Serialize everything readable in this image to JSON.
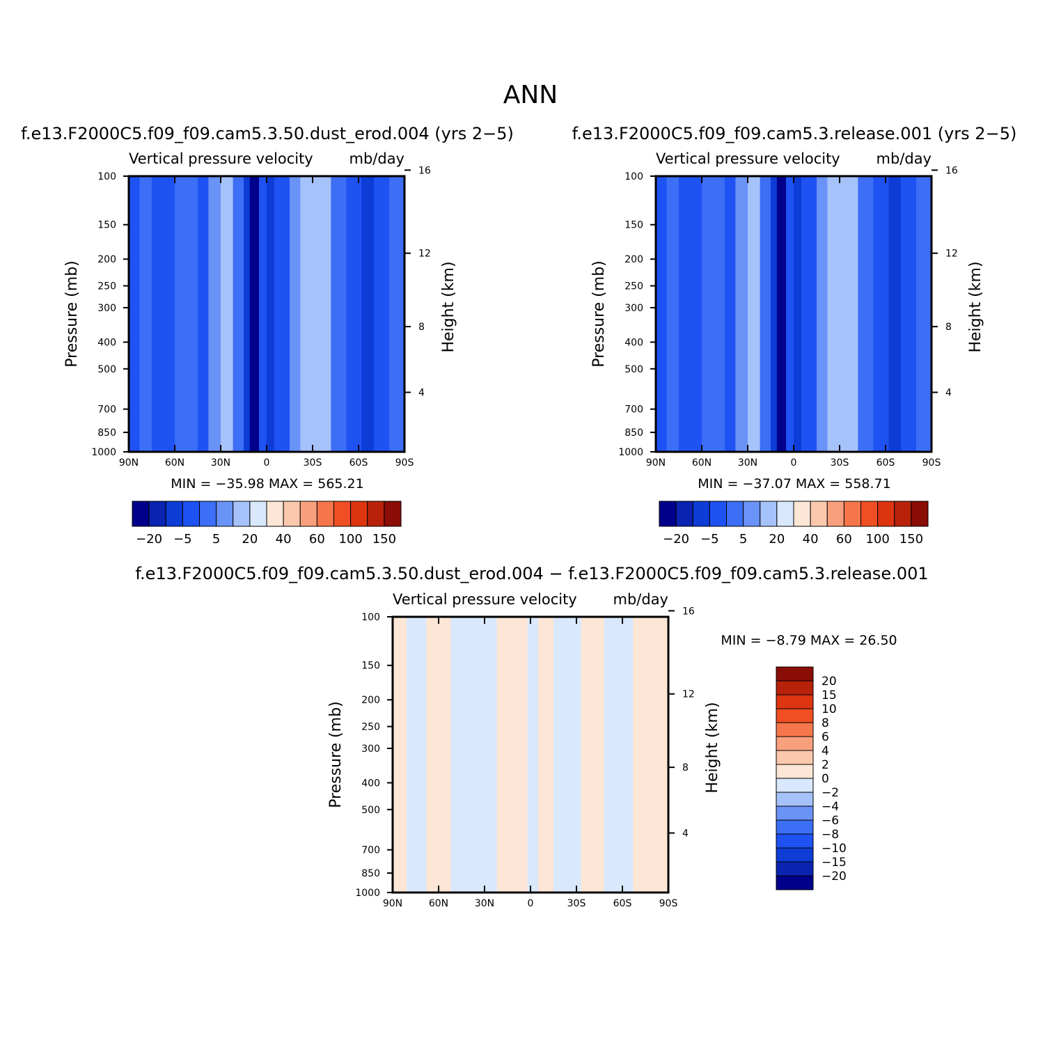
{
  "figure": {
    "title": "ANN"
  },
  "palettes": {
    "main_colors": [
      "#00008b",
      "#0a23b0",
      "#0d3cd6",
      "#1e52f2",
      "#3c6ef6",
      "#6a93f8",
      "#a6c2fb",
      "#d9e8fc",
      "#fde6d6",
      "#fcc8ad",
      "#f8a07d",
      "#f6764b",
      "#ef4f22",
      "#dc3510",
      "#b9220a",
      "#8a0d06"
    ],
    "diff_colors": [
      "#00008b",
      "#0a23b0",
      "#0d3cd6",
      "#1e52f2",
      "#3c6ef6",
      "#6a93f8",
      "#a6c2fb",
      "#d9e8fc",
      "#fde6d6",
      "#fcc8ad",
      "#f8a07d",
      "#f6764b",
      "#ef4f22",
      "#dc3510",
      "#b9220a",
      "#8a0d06"
    ]
  },
  "chart_data": [
    {
      "id": "panel-top-left",
      "type": "heatmap",
      "case_title": "f.e13.F2000C5.f09_f09.cam5.3.50.dust_erod.004 (yrs 2−5)",
      "variable": "Vertical pressure velocity",
      "units": "mb/day",
      "ylabel": "Pressure (mb)",
      "y2label": "Height (km)",
      "x_ticks": [
        "90N",
        "60N",
        "30N",
        "0",
        "30S",
        "60S",
        "90S"
      ],
      "y_ticks": [
        "100",
        "150",
        "200",
        "250",
        "300",
        "400",
        "500",
        "700",
        "850",
        "1000"
      ],
      "y_tick_values": [
        100,
        150,
        200,
        250,
        300,
        400,
        500,
        700,
        850,
        1000
      ],
      "y2_ticks": [
        "4",
        "8",
        "12",
        "16"
      ],
      "y2_tick_values": [
        4,
        8,
        12,
        16
      ],
      "xlim": [
        90,
        -90
      ],
      "ylim": [
        100,
        1000
      ],
      "y_scale": "log",
      "stats_text": "MIN =  −35.98    MAX =  565.21",
      "min": -35.98,
      "max": 565.21,
      "colorbar": {
        "orientation": "horizontal",
        "labels": [
          "−20",
          "−5",
          "5",
          "20",
          "40",
          "60",
          "100",
          "150"
        ]
      },
      "bands": [
        {
          "lat": [
            90,
            83
          ],
          "level": 3
        },
        {
          "lat": [
            83,
            75
          ],
          "level": 4
        },
        {
          "lat": [
            75,
            60
          ],
          "level": 3
        },
        {
          "lat": [
            60,
            45
          ],
          "level": 4
        },
        {
          "lat": [
            45,
            38
          ],
          "level": 3
        },
        {
          "lat": [
            38,
            30
          ],
          "level": 5
        },
        {
          "lat": [
            30,
            22
          ],
          "level": 6
        },
        {
          "lat": [
            22,
            15
          ],
          "level": 4
        },
        {
          "lat": [
            15,
            11
          ],
          "level": 2
        },
        {
          "lat": [
            11,
            5
          ],
          "level": 0
        },
        {
          "lat": [
            5,
            0
          ],
          "level": 3
        },
        {
          "lat": [
            0,
            -5
          ],
          "level": 2
        },
        {
          "lat": [
            -5,
            -15
          ],
          "level": 3
        },
        {
          "lat": [
            -15,
            -22
          ],
          "level": 5
        },
        {
          "lat": [
            -22,
            -42
          ],
          "level": 6
        },
        {
          "lat": [
            -42,
            -52
          ],
          "level": 4
        },
        {
          "lat": [
            -52,
            -62
          ],
          "level": 3
        },
        {
          "lat": [
            -62,
            -70
          ],
          "level": 2
        },
        {
          "lat": [
            -70,
            -80
          ],
          "level": 3
        },
        {
          "lat": [
            -80,
            -90
          ],
          "level": 4
        }
      ]
    },
    {
      "id": "panel-top-right",
      "type": "heatmap",
      "case_title": "f.e13.F2000C5.f09_f09.cam5.3.release.001 (yrs 2−5)",
      "variable": "Vertical pressure velocity",
      "units": "mb/day",
      "ylabel": "Pressure (mb)",
      "y2label": "Height (km)",
      "x_ticks": [
        "90N",
        "60N",
        "30N",
        "0",
        "30S",
        "60S",
        "90S"
      ],
      "y_ticks": [
        "100",
        "150",
        "200",
        "250",
        "300",
        "400",
        "500",
        "700",
        "850",
        "1000"
      ],
      "y_tick_values": [
        100,
        150,
        200,
        250,
        300,
        400,
        500,
        700,
        850,
        1000
      ],
      "y2_ticks": [
        "4",
        "8",
        "12",
        "16"
      ],
      "y2_tick_values": [
        4,
        8,
        12,
        16
      ],
      "xlim": [
        90,
        -90
      ],
      "ylim": [
        100,
        1000
      ],
      "y_scale": "log",
      "stats_text": "MIN =  −37.07    MAX =  558.71",
      "min": -37.07,
      "max": 558.71,
      "colorbar": {
        "orientation": "horizontal",
        "labels": [
          "−20",
          "−5",
          "5",
          "20",
          "40",
          "60",
          "100",
          "150"
        ]
      },
      "bands": [
        {
          "lat": [
            90,
            83
          ],
          "level": 3
        },
        {
          "lat": [
            83,
            75
          ],
          "level": 4
        },
        {
          "lat": [
            75,
            60
          ],
          "level": 3
        },
        {
          "lat": [
            60,
            45
          ],
          "level": 4
        },
        {
          "lat": [
            45,
            38
          ],
          "level": 3
        },
        {
          "lat": [
            38,
            30
          ],
          "level": 5
        },
        {
          "lat": [
            30,
            22
          ],
          "level": 6
        },
        {
          "lat": [
            22,
            15
          ],
          "level": 4
        },
        {
          "lat": [
            15,
            11
          ],
          "level": 2
        },
        {
          "lat": [
            11,
            5
          ],
          "level": 0
        },
        {
          "lat": [
            5,
            0
          ],
          "level": 3
        },
        {
          "lat": [
            0,
            -5
          ],
          "level": 2
        },
        {
          "lat": [
            -5,
            -15
          ],
          "level": 3
        },
        {
          "lat": [
            -15,
            -22
          ],
          "level": 5
        },
        {
          "lat": [
            -22,
            -42
          ],
          "level": 6
        },
        {
          "lat": [
            -42,
            -52
          ],
          "level": 4
        },
        {
          "lat": [
            -52,
            -62
          ],
          "level": 3
        },
        {
          "lat": [
            -62,
            -70
          ],
          "level": 2
        },
        {
          "lat": [
            -70,
            -80
          ],
          "level": 3
        },
        {
          "lat": [
            -80,
            -90
          ],
          "level": 4
        }
      ]
    },
    {
      "id": "panel-bottom-diff",
      "type": "heatmap",
      "case_title": "f.e13.F2000C5.f09_f09.cam5.3.50.dust_erod.004 − f.e13.F2000C5.f09_f09.cam5.3.release.001",
      "variable": "Vertical pressure velocity",
      "units": "mb/day",
      "ylabel": "Pressure (mb)",
      "y2label": "Height (km)",
      "x_ticks": [
        "90N",
        "60N",
        "30N",
        "0",
        "30S",
        "60S",
        "90S"
      ],
      "y_ticks": [
        "100",
        "150",
        "200",
        "250",
        "300",
        "400",
        "500",
        "700",
        "850",
        "1000"
      ],
      "y_tick_values": [
        100,
        150,
        200,
        250,
        300,
        400,
        500,
        700,
        850,
        1000
      ],
      "y2_ticks": [
        "4",
        "8",
        "12",
        "16"
      ],
      "y2_tick_values": [
        4,
        8,
        12,
        16
      ],
      "xlim": [
        90,
        -90
      ],
      "ylim": [
        100,
        1000
      ],
      "y_scale": "log",
      "stats_text": "MIN =    −8.79    MAX =    26.50",
      "min": -8.79,
      "max": 26.5,
      "colorbar": {
        "orientation": "vertical",
        "labels": [
          "20",
          "15",
          "10",
          "8",
          "6",
          "4",
          "2",
          "0",
          "−2",
          "−4",
          "−6",
          "−8",
          "−10",
          "−15",
          "−20"
        ]
      },
      "bands": [
        {
          "lat": [
            90,
            81
          ],
          "level": 8
        },
        {
          "lat": [
            81,
            68
          ],
          "level": 7
        },
        {
          "lat": [
            68,
            52
          ],
          "level": 8
        },
        {
          "lat": [
            52,
            22
          ],
          "level": 7
        },
        {
          "lat": [
            22,
            2
          ],
          "level": 8
        },
        {
          "lat": [
            2,
            -5
          ],
          "level": 7
        },
        {
          "lat": [
            -5,
            -15
          ],
          "level": 8
        },
        {
          "lat": [
            -15,
            -33
          ],
          "level": 7
        },
        {
          "lat": [
            -33,
            -48
          ],
          "level": 8
        },
        {
          "lat": [
            -48,
            -67
          ],
          "level": 7
        },
        {
          "lat": [
            -67,
            -90
          ],
          "level": 8
        }
      ]
    }
  ]
}
